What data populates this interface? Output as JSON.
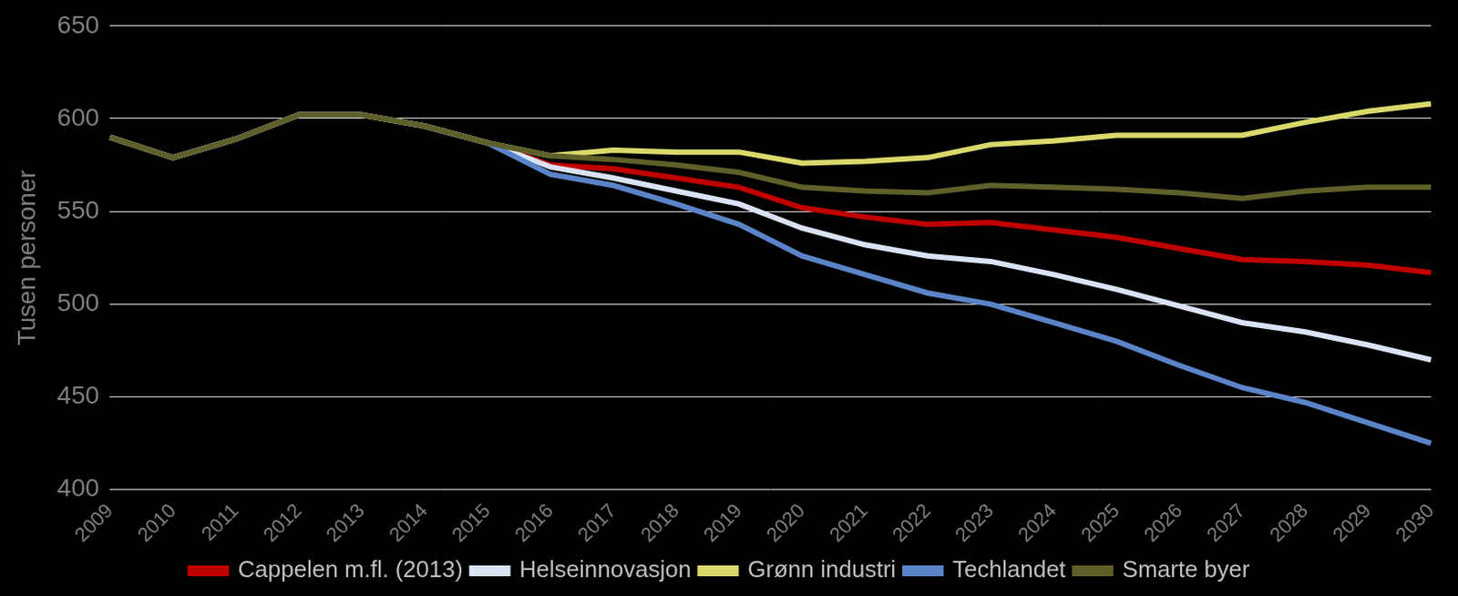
{
  "chart_data": {
    "type": "line",
    "y_label": "Tusen personer",
    "categories": [
      "2009",
      "2010",
      "2011",
      "2012",
      "2013",
      "2014",
      "2015",
      "2016",
      "2017",
      "2018",
      "2019",
      "2020",
      "2021",
      "2022",
      "2023",
      "2024",
      "2025",
      "2026",
      "2027",
      "2028",
      "2029",
      "2030"
    ],
    "series": [
      {
        "name": "Cappelen m.fl. (2013)",
        "color": "#c00000",
        "values": [
          590,
          579,
          589,
          602,
          602,
          596,
          587,
          575,
          573,
          568,
          563,
          552,
          547,
          543,
          544,
          540,
          536,
          530,
          524,
          523,
          521,
          517
        ]
      },
      {
        "name": "Helseinnovasjon",
        "color": "#dae3f3",
        "values": [
          590,
          579,
          589,
          602,
          602,
          596,
          587,
          574,
          568,
          561,
          554,
          541,
          532,
          526,
          523,
          516,
          508,
          499,
          490,
          485,
          478,
          470
        ]
      },
      {
        "name": "Grønn industri",
        "color": "#d9d96b",
        "values": [
          590,
          579,
          589,
          602,
          602,
          596,
          587,
          580,
          583,
          582,
          582,
          576,
          577,
          579,
          586,
          588,
          591,
          591,
          591,
          598,
          604,
          608
        ]
      },
      {
        "name": "Techlandet",
        "color": "#5b84c8",
        "values": [
          590,
          579,
          589,
          602,
          602,
          596,
          587,
          570,
          564,
          554,
          543,
          526,
          516,
          506,
          500,
          490,
          480,
          467,
          455,
          447,
          436,
          425
        ]
      },
      {
        "name": "Smarte byer",
        "color": "#5f5f2a",
        "values": [
          590,
          579,
          589,
          602,
          602,
          596,
          587,
          580,
          578,
          575,
          571,
          563,
          561,
          560,
          564,
          563,
          562,
          560,
          557,
          561,
          563,
          563
        ]
      }
    ],
    "ylim": [
      400,
      650
    ],
    "yticks": [
      400,
      450,
      500,
      550,
      600,
      650
    ],
    "grid": true,
    "legend": "bottom"
  }
}
